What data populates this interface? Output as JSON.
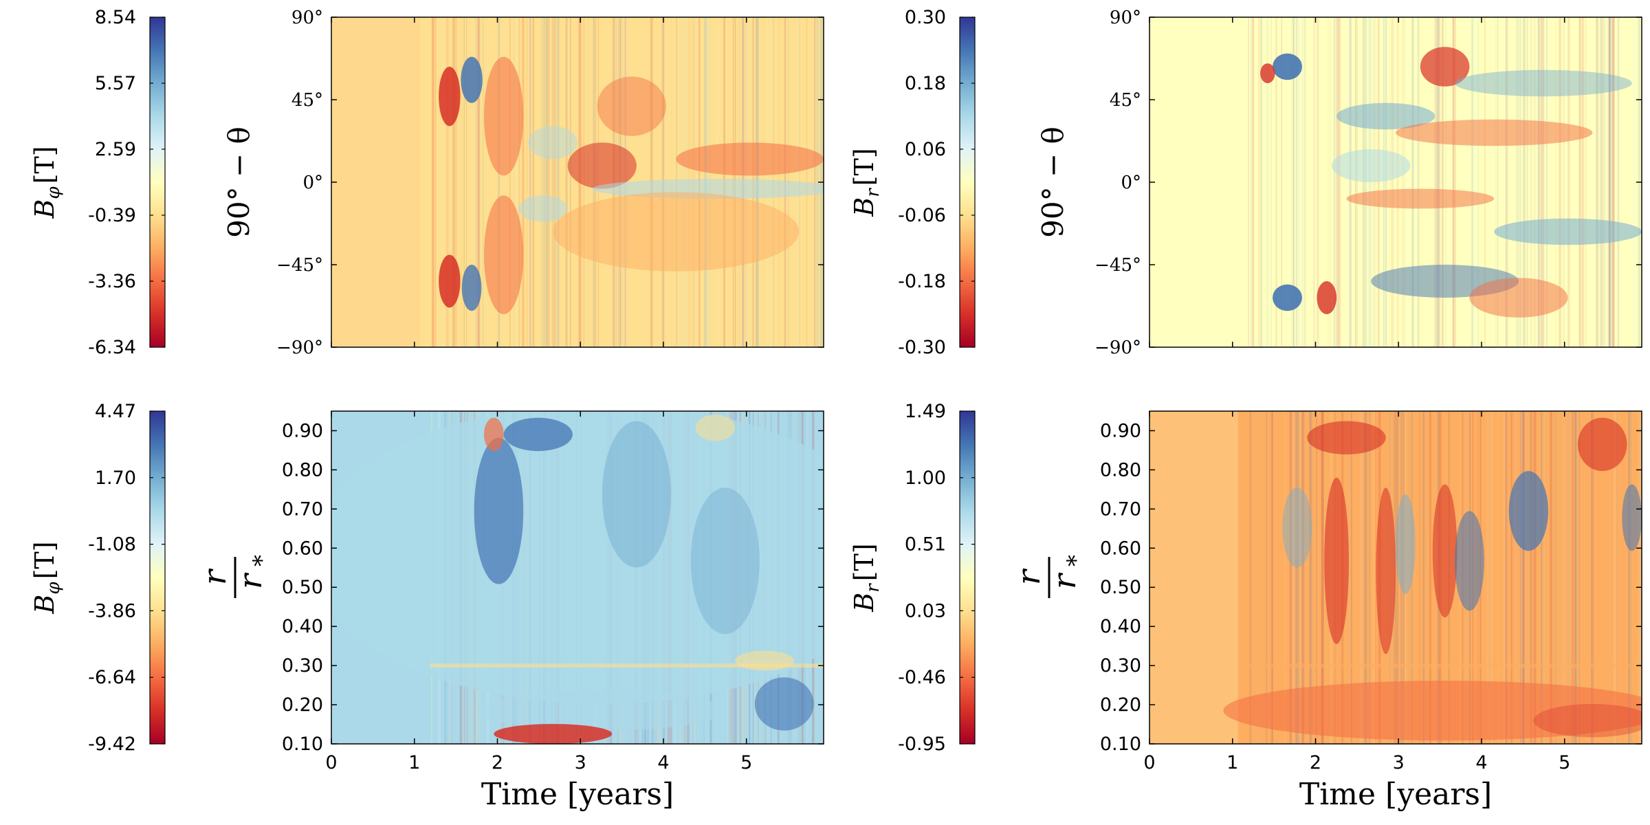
{
  "chart_data": [
    {
      "type": "heatmap",
      "id": "top-left",
      "colorbar": {
        "label_symbol": "B",
        "label_sub": "φ",
        "label_unit": "[T]",
        "ticks": [
          "8.54",
          "5.57",
          "2.59",
          "-0.39",
          "-3.36",
          "-6.34"
        ],
        "range": [
          -6.34,
          8.54
        ]
      },
      "ylabel": "90° − θ",
      "yticks": [
        "90°",
        "45°",
        "0°",
        "−45°",
        "−90°"
      ],
      "ylim": [
        -90,
        90
      ],
      "xlim": [
        0,
        5.93
      ],
      "xlabel": "",
      "xticks": [
        "0",
        "1",
        "2",
        "3",
        "4",
        "5"
      ],
      "show_xticklabels": false
    },
    {
      "type": "heatmap",
      "id": "top-right",
      "colorbar": {
        "label_symbol": "B",
        "label_sub": "r",
        "label_unit": "[T]",
        "ticks": [
          "0.30",
          "0.18",
          "0.06",
          "-0.06",
          "-0.18",
          "-0.30"
        ],
        "range": [
          -0.3,
          0.3
        ]
      },
      "ylabel": "90° − θ",
      "yticks": [
        "90°",
        "45°",
        "0°",
        "−45°",
        "−90°"
      ],
      "ylim": [
        -90,
        90
      ],
      "xlim": [
        0,
        5.93
      ],
      "xlabel": "",
      "xticks": [
        "0",
        "1",
        "2",
        "3",
        "4",
        "5"
      ],
      "show_xticklabels": false
    },
    {
      "type": "heatmap",
      "id": "bottom-left",
      "colorbar": {
        "label_symbol": "B",
        "label_sub": "φ",
        "label_unit": "[T]",
        "ticks": [
          "4.47",
          "1.70",
          "-1.08",
          "-3.86",
          "-6.64",
          "-9.42"
        ],
        "range": [
          -9.42,
          4.47
        ]
      },
      "ylabel_num": "r",
      "ylabel_den": "r",
      "ylabel_den_sub": "*",
      "yticks": [
        "0.90",
        "0.80",
        "0.70",
        "0.60",
        "0.50",
        "0.40",
        "0.30",
        "0.20",
        "0.10"
      ],
      "ylim": [
        0.1,
        0.95
      ],
      "xlim": [
        0,
        5.93
      ],
      "xlabel": "Time [years]",
      "xticks": [
        "0",
        "1",
        "2",
        "3",
        "4",
        "5"
      ],
      "show_xticklabels": true
    },
    {
      "type": "heatmap",
      "id": "bottom-right",
      "colorbar": {
        "label_symbol": "B",
        "label_sub": "r",
        "label_unit": "[T]",
        "ticks": [
          "1.49",
          "1.00",
          "0.51",
          "0.03",
          "-0.46",
          "-0.95"
        ],
        "range": [
          -0.95,
          1.49
        ]
      },
      "ylabel_num": "r",
      "ylabel_den": "r",
      "ylabel_den_sub": "*",
      "yticks": [
        "0.90",
        "0.80",
        "0.70",
        "0.60",
        "0.50",
        "0.40",
        "0.30",
        "0.20",
        "0.10"
      ],
      "ylim": [
        0.1,
        0.95
      ],
      "xlim": [
        0,
        5.93
      ],
      "xlabel": "Time [years]",
      "xticks": [
        "0",
        "1",
        "2",
        "3",
        "4",
        "5"
      ],
      "show_xticklabels": true
    }
  ],
  "colors": {
    "cmap": [
      "#a50026",
      "#d73027",
      "#f46d43",
      "#fdae61",
      "#fee090",
      "#ffffbf",
      "#e0f3f8",
      "#abd9e9",
      "#74add1",
      "#4575b4",
      "#313695"
    ],
    "axis": "#000000"
  }
}
